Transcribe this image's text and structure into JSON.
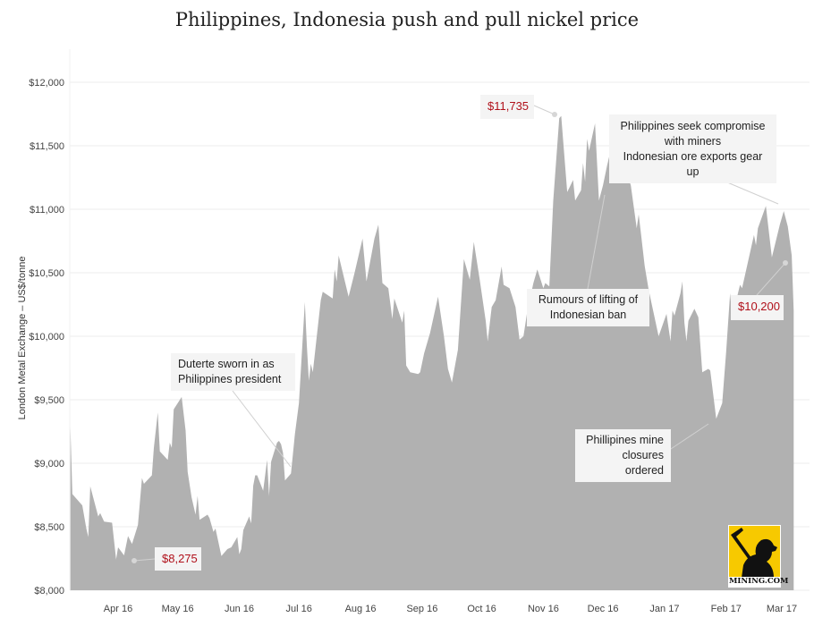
{
  "chart_data": {
    "type": "area",
    "title": "Philippines, Indonesia push and pull nickel price",
    "ylabel": "London Metal Exchange – US$/tonne",
    "xlabel": "",
    "ylim": [
      8000,
      12000
    ],
    "yticks": [
      "$8,000",
      "$8,500",
      "$9,000",
      "$9,500",
      "$10,000",
      "$10,500",
      "$11,000",
      "$11,500",
      "$12,000"
    ],
    "ytick_values": [
      8000,
      8500,
      9000,
      9500,
      10000,
      10500,
      11000,
      11500,
      12000
    ],
    "xticks": [
      {
        "label": "Apr 16",
        "date": "2016-04-01"
      },
      {
        "label": "May 16",
        "date": "2016-05-01"
      },
      {
        "label": "Jun 16",
        "date": "2016-06-01"
      },
      {
        "label": "Jul 16",
        "date": "2016-07-01"
      },
      {
        "label": "Aug 16",
        "date": "2016-08-01"
      },
      {
        "label": "Sep 16",
        "date": "2016-09-01"
      },
      {
        "label": "Oct 16",
        "date": "2016-10-01"
      },
      {
        "label": "Nov 16",
        "date": "2016-11-01"
      },
      {
        "label": "Dec 16",
        "date": "2016-12-01"
      },
      {
        "label": "Jan 17",
        "date": "2017-01-01"
      },
      {
        "label": "Feb 17",
        "date": "2017-02-01"
      },
      {
        "label": "Mar 17",
        "date": "2017-03-01"
      }
    ],
    "grid": true,
    "fill_color": "#b1b1b1",
    "series": [
      {
        "points": [
          [
            "2016-03-08",
            9284
          ],
          [
            "2016-03-09",
            8757
          ],
          [
            "2016-03-11",
            8722
          ],
          [
            "2016-03-14",
            8668
          ],
          [
            "2016-03-16",
            8486
          ],
          [
            "2016-03-17",
            8419
          ],
          [
            "2016-03-18",
            8819
          ],
          [
            "2016-03-22",
            8581
          ],
          [
            "2016-03-23",
            8608
          ],
          [
            "2016-03-25",
            8540
          ],
          [
            "2016-03-29",
            8532
          ],
          [
            "2016-03-31",
            8243
          ],
          [
            "2016-04-01",
            8338
          ],
          [
            "2016-04-04",
            8275
          ],
          [
            "2016-04-06",
            8427
          ],
          [
            "2016-04-08",
            8365
          ],
          [
            "2016-04-11",
            8514
          ],
          [
            "2016-04-13",
            8884
          ],
          [
            "2016-04-14",
            8838
          ],
          [
            "2016-04-18",
            8905
          ],
          [
            "2016-04-19",
            9121
          ],
          [
            "2016-04-21",
            9400
          ],
          [
            "2016-04-22",
            9094
          ],
          [
            "2016-04-26",
            9027
          ],
          [
            "2016-04-27",
            9162
          ],
          [
            "2016-04-28",
            9121
          ],
          [
            "2016-04-29",
            9424
          ],
          [
            "2016-05-03",
            9522
          ],
          [
            "2016-05-05",
            9257
          ],
          [
            "2016-05-06",
            8932
          ],
          [
            "2016-05-08",
            8730
          ],
          [
            "2016-05-10",
            8595
          ],
          [
            "2016-05-11",
            8743
          ],
          [
            "2016-05-12",
            8554
          ],
          [
            "2016-05-16",
            8595
          ],
          [
            "2016-05-17",
            8568
          ],
          [
            "2016-05-19",
            8459
          ],
          [
            "2016-05-20",
            8486
          ],
          [
            "2016-05-23",
            8270
          ],
          [
            "2016-05-26",
            8324
          ],
          [
            "2016-05-28",
            8338
          ],
          [
            "2016-05-31",
            8419
          ],
          [
            "2016-06-01",
            8284
          ],
          [
            "2016-06-02",
            8324
          ],
          [
            "2016-06-03",
            8473
          ],
          [
            "2016-06-06",
            8581
          ],
          [
            "2016-06-07",
            8527
          ],
          [
            "2016-06-08",
            8824
          ],
          [
            "2016-06-09",
            8905
          ],
          [
            "2016-06-10",
            8905
          ],
          [
            "2016-06-13",
            8784
          ],
          [
            "2016-06-15",
            9027
          ],
          [
            "2016-06-16",
            8743
          ],
          [
            "2016-06-17",
            9013
          ],
          [
            "2016-06-20",
            9162
          ],
          [
            "2016-06-21",
            9176
          ],
          [
            "2016-06-22",
            9149
          ],
          [
            "2016-06-23",
            9081
          ],
          [
            "2016-06-24",
            8865
          ],
          [
            "2016-06-27",
            8919
          ],
          [
            "2016-06-29",
            9230
          ],
          [
            "2016-07-01",
            9473
          ],
          [
            "2016-07-04",
            10270
          ],
          [
            "2016-07-05",
            9932
          ],
          [
            "2016-07-06",
            9649
          ],
          [
            "2016-07-07",
            9784
          ],
          [
            "2016-07-08",
            9716
          ],
          [
            "2016-07-12",
            10284
          ],
          [
            "2016-07-13",
            10351
          ],
          [
            "2016-07-18",
            10297
          ],
          [
            "2016-07-19",
            10527
          ],
          [
            "2016-07-20",
            10432
          ],
          [
            "2016-07-21",
            10635
          ],
          [
            "2016-07-26",
            10311
          ],
          [
            "2016-07-29",
            10500
          ],
          [
            "2016-08-02",
            10770
          ],
          [
            "2016-08-04",
            10432
          ],
          [
            "2016-08-08",
            10770
          ],
          [
            "2016-08-10",
            10878
          ],
          [
            "2016-08-12",
            10419
          ],
          [
            "2016-08-15",
            10378
          ],
          [
            "2016-08-17",
            10135
          ],
          [
            "2016-08-18",
            10297
          ],
          [
            "2016-08-22",
            10108
          ],
          [
            "2016-08-23",
            10203
          ],
          [
            "2016-08-24",
            9770
          ],
          [
            "2016-08-26",
            9716
          ],
          [
            "2016-08-30",
            9703
          ],
          [
            "2016-08-31",
            9716
          ],
          [
            "2016-09-02",
            9865
          ],
          [
            "2016-09-05",
            10027
          ],
          [
            "2016-09-09",
            10311
          ],
          [
            "2016-09-12",
            10000
          ],
          [
            "2016-09-14",
            9743
          ],
          [
            "2016-09-16",
            9635
          ],
          [
            "2016-09-19",
            9892
          ],
          [
            "2016-09-22",
            10608
          ],
          [
            "2016-09-25",
            10446
          ],
          [
            "2016-09-27",
            10743
          ],
          [
            "2016-09-30",
            10446
          ],
          [
            "2016-10-03",
            10122
          ],
          [
            "2016-10-04",
            9959
          ],
          [
            "2016-10-06",
            10230
          ],
          [
            "2016-10-08",
            10284
          ],
          [
            "2016-10-11",
            10549
          ],
          [
            "2016-10-12",
            10405
          ],
          [
            "2016-10-15",
            10378
          ],
          [
            "2016-10-18",
            10230
          ],
          [
            "2016-10-20",
            9973
          ],
          [
            "2016-10-22",
            10000
          ],
          [
            "2016-10-24",
            10203
          ],
          [
            "2016-10-27",
            10419
          ],
          [
            "2016-10-29",
            10527
          ],
          [
            "2016-11-01",
            10378
          ],
          [
            "2016-11-02",
            10419
          ],
          [
            "2016-11-04",
            10392
          ],
          [
            "2016-11-06",
            11068
          ],
          [
            "2016-11-09",
            11716
          ],
          [
            "2016-11-10",
            11735
          ],
          [
            "2016-11-13",
            11135
          ],
          [
            "2016-11-16",
            11230
          ],
          [
            "2016-11-17",
            11068
          ],
          [
            "2016-11-20",
            11149
          ],
          [
            "2016-11-21",
            11365
          ],
          [
            "2016-11-22",
            11216
          ],
          [
            "2016-11-23",
            11554
          ],
          [
            "2016-11-24",
            11459
          ],
          [
            "2016-11-27",
            11676
          ],
          [
            "2016-11-29",
            11068
          ],
          [
            "2016-12-01",
            11189
          ],
          [
            "2016-12-03",
            11338
          ],
          [
            "2016-12-06",
            11541
          ],
          [
            "2016-12-08",
            11338
          ],
          [
            "2016-12-11",
            11284
          ],
          [
            "2016-12-12",
            11338
          ],
          [
            "2016-12-15",
            11189
          ],
          [
            "2016-12-18",
            10851
          ],
          [
            "2016-12-19",
            10959
          ],
          [
            "2016-12-20",
            10824
          ],
          [
            "2016-12-22",
            10554
          ],
          [
            "2016-12-24",
            10365
          ],
          [
            "2016-12-29",
            10000
          ],
          [
            "2017-01-02",
            10176
          ],
          [
            "2017-01-04",
            9959
          ],
          [
            "2017-01-05",
            10203
          ],
          [
            "2017-01-06",
            10162
          ],
          [
            "2017-01-09",
            10338
          ],
          [
            "2017-01-10",
            10432
          ],
          [
            "2017-01-11",
            10108
          ],
          [
            "2017-01-12",
            9959
          ],
          [
            "2017-01-13",
            10122
          ],
          [
            "2017-01-16",
            10216
          ],
          [
            "2017-01-18",
            10149
          ],
          [
            "2017-01-20",
            9716
          ],
          [
            "2017-01-23",
            9743
          ],
          [
            "2017-01-24",
            9730
          ],
          [
            "2017-01-27",
            9351
          ],
          [
            "2017-01-30",
            9473
          ],
          [
            "2017-02-01",
            9878
          ],
          [
            "2017-02-03",
            10338
          ],
          [
            "2017-02-04",
            10149
          ],
          [
            "2017-02-08",
            10405
          ],
          [
            "2017-02-09",
            10378
          ],
          [
            "2017-02-15",
            10797
          ],
          [
            "2017-02-16",
            10716
          ],
          [
            "2017-02-17",
            10851
          ],
          [
            "2017-02-21",
            11027
          ],
          [
            "2017-02-24",
            10622
          ],
          [
            "2017-02-28",
            10878
          ],
          [
            "2017-03-02",
            10986
          ],
          [
            "2017-03-04",
            10865
          ],
          [
            "2017-03-06",
            10635
          ],
          [
            "2017-03-07",
            10200
          ]
        ]
      }
    ],
    "annotations": {
      "low_price": "$8,275",
      "duterte": [
        "Duterte sworn in as",
        "Philippines president"
      ],
      "high_price": "$11,735",
      "compromise": [
        "Philippines seek compromise",
        "with miners",
        "Indonesian ore exports gear up"
      ],
      "rumours": [
        "Rumours of lifting of",
        "Indonesian ban"
      ],
      "closures": [
        "Phillipines mine",
        "closures ordered"
      ],
      "last_price": "$10,200"
    },
    "annotation_price_color": "#b0101a"
  },
  "logo": {
    "text": "MINING.COM",
    "color": "#f7c900"
  }
}
